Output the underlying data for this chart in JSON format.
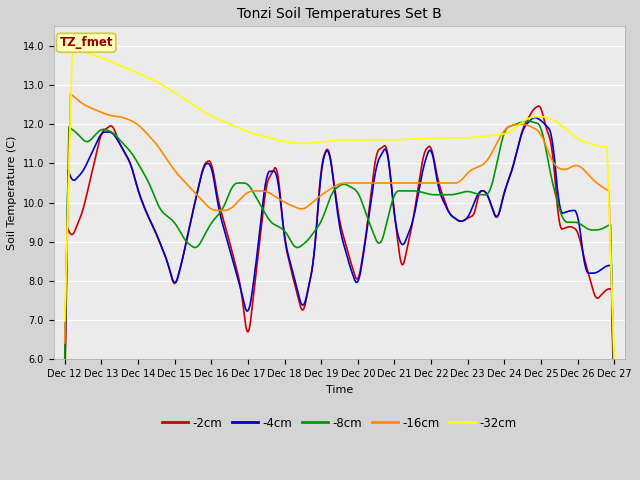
{
  "title": "Tonzi Soil Temperatures Set B",
  "xlabel": "Time",
  "ylabel": "Soil Temperature (C)",
  "ylim": [
    6.0,
    14.5
  ],
  "yticks": [
    6.0,
    7.0,
    8.0,
    9.0,
    10.0,
    11.0,
    12.0,
    13.0,
    14.0
  ],
  "fig_bg_color": "#d4d4d4",
  "plot_bg_color": "#ebebeb",
  "legend_label": "TZ_fmet",
  "legend_box_facecolor": "#ffffbb",
  "legend_box_edgecolor": "#cccc44",
  "legend_text_color": "#990000",
  "series_colors": {
    "-2cm": "#cc0000",
    "-4cm": "#0000cc",
    "-8cm": "#009900",
    "-16cm": "#ff8800",
    "-32cm": "#ffff00"
  },
  "series_order": [
    "-2cm",
    "-4cm",
    "-8cm",
    "-16cm",
    "-32cm"
  ],
  "xtick_labels": [
    "Dec 12",
    "Dec 13",
    "Dec 14",
    "Dec 15",
    "Dec 16",
    "Dec 17",
    "Dec 18",
    "Dec 19",
    "Dec 20",
    "Dec 21",
    "Dec 22",
    "Dec 23",
    "Dec 24",
    "Dec 25",
    "Dec 26",
    "Dec 27"
  ],
  "lw": 1.2,
  "grid_color": "#ffffff",
  "title_fontsize": 10,
  "axis_fontsize": 8,
  "tick_fontsize": 7
}
